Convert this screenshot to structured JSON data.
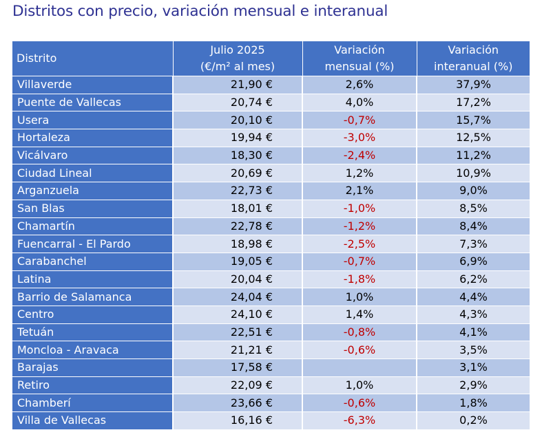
{
  "title": "Distritos con precio, variación mensual e interanual",
  "headers": {
    "distrito": "Distrito",
    "precio_l1": "Julio 2025",
    "precio_l2": "(€/m² al mes)",
    "mensual_l1": "Variación",
    "mensual_l2": "mensual (%)",
    "interanual_l1": "Variación",
    "interanual_l2": "interanual (%)"
  },
  "colors": {
    "header_bg": "#4472c4",
    "row_odd": "#b4c6e7",
    "row_even": "#d9e1f2",
    "negative": "#c00000",
    "title": "#2e3192"
  },
  "chart_data": {
    "type": "table",
    "title": "Distritos con precio, variación mensual e interanual",
    "columns": [
      "Distrito",
      "Julio 2025 (€/m² al mes)",
      "Variación mensual (%)",
      "Variación interanual (%)"
    ],
    "rows": [
      {
        "distrito": "Villaverde",
        "precio": "21,90 €",
        "mensual": "2,6%",
        "interanual": "37,9%"
      },
      {
        "distrito": "Puente de Vallecas",
        "precio": "20,74 €",
        "mensual": "4,0%",
        "interanual": "17,2%"
      },
      {
        "distrito": "Usera",
        "precio": "20,10 €",
        "mensual": "-0,7%",
        "interanual": "15,7%"
      },
      {
        "distrito": "Hortaleza",
        "precio": "19,94 €",
        "mensual": "-3,0%",
        "interanual": "12,5%"
      },
      {
        "distrito": "Vicálvaro",
        "precio": "18,30 €",
        "mensual": "-2,4%",
        "interanual": "11,2%"
      },
      {
        "distrito": "Ciudad Lineal",
        "precio": "20,69 €",
        "mensual": "1,2%",
        "interanual": "10,9%"
      },
      {
        "distrito": "Arganzuela",
        "precio": "22,73 €",
        "mensual": "2,1%",
        "interanual": "9,0%"
      },
      {
        "distrito": "San Blas",
        "precio": "18,01 €",
        "mensual": "-1,0%",
        "interanual": "8,5%"
      },
      {
        "distrito": "Chamartín",
        "precio": "22,78 €",
        "mensual": "-1,2%",
        "interanual": "8,4%"
      },
      {
        "distrito": "Fuencarral - El Pardo",
        "precio": "18,98 €",
        "mensual": "-2,5%",
        "interanual": "7,3%"
      },
      {
        "distrito": "Carabanchel",
        "precio": "19,05 €",
        "mensual": "-0,7%",
        "interanual": "6,9%"
      },
      {
        "distrito": "Latina",
        "precio": "20,04 €",
        "mensual": "-1,8%",
        "interanual": "6,2%"
      },
      {
        "distrito": "Barrio de Salamanca",
        "precio": "24,04 €",
        "mensual": "1,0%",
        "interanual": "4,4%"
      },
      {
        "distrito": "Centro",
        "precio": "24,10 €",
        "mensual": "1,4%",
        "interanual": "4,3%"
      },
      {
        "distrito": "Tetuán",
        "precio": "22,51 €",
        "mensual": "-0,8%",
        "interanual": "4,1%"
      },
      {
        "distrito": "Moncloa - Aravaca",
        "precio": "21,21 €",
        "mensual": "-0,6%",
        "interanual": "3,5%"
      },
      {
        "distrito": "Barajas",
        "precio": "17,58 €",
        "mensual": "",
        "interanual": "3,1%"
      },
      {
        "distrito": "Retiro",
        "precio": "22,09 €",
        "mensual": "1,0%",
        "interanual": "2,9%"
      },
      {
        "distrito": "Chamberí",
        "precio": "23,66 €",
        "mensual": "-0,6%",
        "interanual": "1,8%"
      },
      {
        "distrito": "Villa de Vallecas",
        "precio": "16,16 €",
        "mensual": "-6,3%",
        "interanual": "0,2%"
      }
    ]
  }
}
